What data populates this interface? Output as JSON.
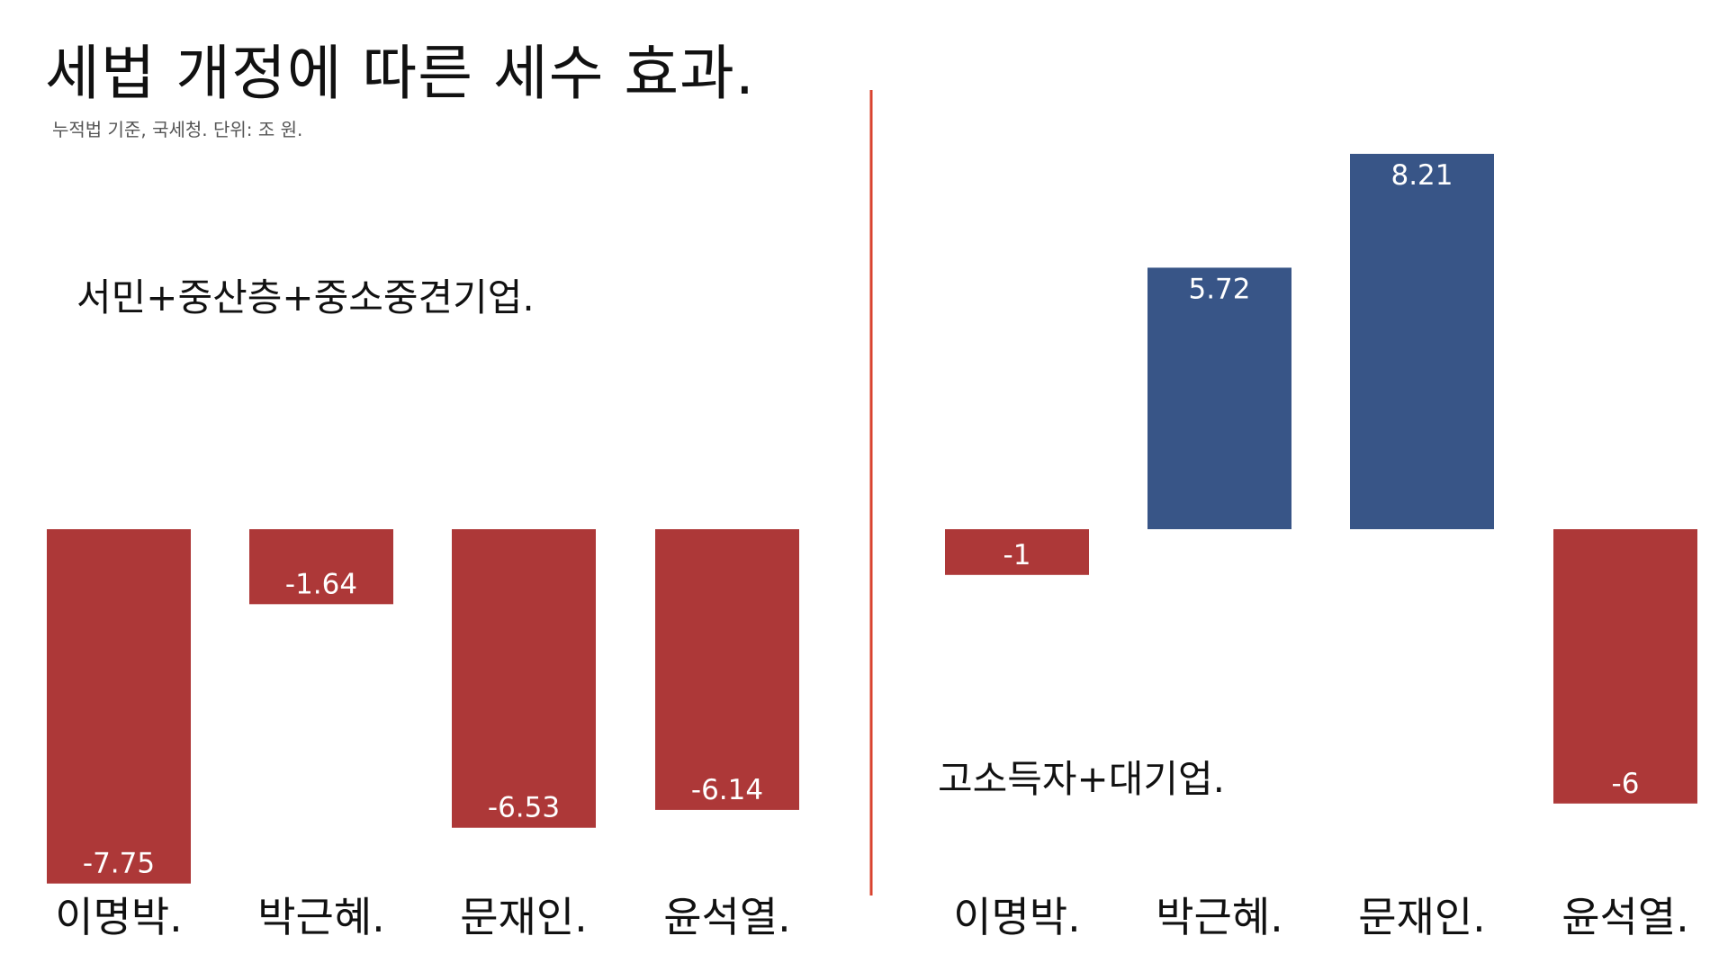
{
  "title": "세법 개정에 따른 세수 효과.",
  "subtitle": "누적법 기준, 국세청. 단위: 조 원.",
  "colors": {
    "negative": "#ad3838",
    "positive": "#385587",
    "divider": "#d9432f",
    "label_on_bar": "#ffffff"
  },
  "chart_data": [
    {
      "type": "bar",
      "title": "서민+중산층+중소중견기업.",
      "categories": [
        "이명박.",
        "박근혜.",
        "문재인.",
        "윤석열."
      ],
      "values": [
        -7.75,
        -1.64,
        -6.53,
        -6.14
      ],
      "value_labels": [
        "-7.75",
        "-1.64",
        "-6.53",
        "-6.14"
      ],
      "ylim": [
        -7.75,
        8.21
      ]
    },
    {
      "type": "bar",
      "title": "고소득자+대기업.",
      "categories": [
        "이명박.",
        "박근혜.",
        "문재인.",
        "윤석열."
      ],
      "values": [
        -1,
        5.72,
        8.21,
        -6
      ],
      "value_labels": [
        "-1",
        "5.72",
        "8.21",
        "-6"
      ],
      "ylim": [
        -7.75,
        8.21
      ]
    }
  ]
}
